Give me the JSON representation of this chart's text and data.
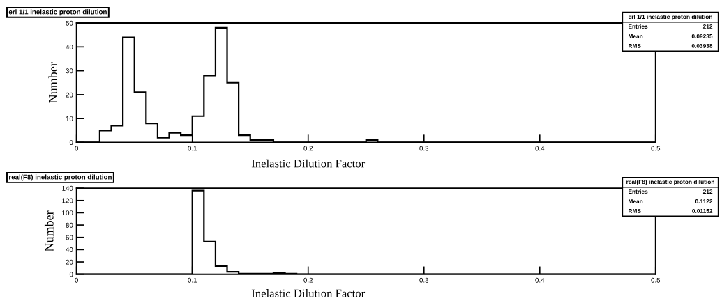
{
  "chart_data": [
    {
      "type": "histogram",
      "title": "erl 1/1 inelastic proton dilution",
      "xlabel": "Inelastic Dilution Factor",
      "ylabel": "Number",
      "bins": [
        0,
        0.01,
        0.02,
        0.03,
        0.04,
        0.05,
        0.06,
        0.07,
        0.08,
        0.09,
        0.1,
        0.11,
        0.12,
        0.13,
        0.14,
        0.15,
        0.16,
        0.17,
        0.18,
        0.19,
        0.2,
        0.21,
        0.22,
        0.23,
        0.24,
        0.25,
        0.26,
        0.27,
        0.28,
        0.29,
        0.3,
        0.31,
        0.32,
        0.33,
        0.34,
        0.35,
        0.36,
        0.37,
        0.38,
        0.39,
        0.4,
        0.41,
        0.42,
        0.43,
        0.44,
        0.45,
        0.46,
        0.47,
        0.48,
        0.49,
        0.5
      ],
      "values": [
        0,
        0,
        5,
        7,
        44,
        21,
        8,
        2,
        4,
        3,
        11,
        28,
        48,
        25,
        3,
        1,
        1,
        0,
        0,
        0,
        0,
        0,
        0,
        0,
        0,
        1,
        0,
        0,
        0,
        0,
        0,
        0,
        0,
        0,
        0,
        0,
        0,
        0,
        0,
        0,
        0,
        0,
        0,
        0,
        0,
        0,
        0,
        0,
        0,
        0
      ],
      "color": "#000000",
      "xlim": [
        0,
        0.5
      ],
      "ylim": [
        0,
        50
      ],
      "xticks": [
        0,
        0.1,
        0.2,
        0.3,
        0.4,
        0.5
      ],
      "yticks": [
        0,
        10,
        20,
        30,
        40,
        50
      ],
      "annotations": [
        "erl 1/1 inelastic proton dilution",
        "Entries",
        "212",
        "Mean",
        "0.09235",
        "RMS",
        "0.03938"
      ],
      "grid": false,
      "legend": false
    },
    {
      "type": "histogram",
      "title": "real(F8) inelastic proton dilution",
      "xlabel": "Inelastic Dilution Factor",
      "ylabel": "Number",
      "bins": [
        0,
        0.01,
        0.02,
        0.03,
        0.04,
        0.05,
        0.06,
        0.07,
        0.08,
        0.09,
        0.1,
        0.11,
        0.12,
        0.13,
        0.14,
        0.15,
        0.16,
        0.17,
        0.18,
        0.19,
        0.2,
        0.21,
        0.22,
        0.23,
        0.24,
        0.25,
        0.26,
        0.27,
        0.28,
        0.29,
        0.3,
        0.31,
        0.32,
        0.33,
        0.34,
        0.35,
        0.36,
        0.37,
        0.38,
        0.39,
        0.4,
        0.41,
        0.42,
        0.43,
        0.44,
        0.45,
        0.46,
        0.47,
        0.48,
        0.49,
        0.5
      ],
      "values": [
        0,
        0,
        0,
        0,
        0,
        0,
        0,
        0,
        0,
        0,
        136,
        53,
        13,
        4,
        1,
        1,
        1,
        2,
        1,
        0,
        0,
        0,
        0,
        0,
        0,
        0,
        0,
        0,
        0,
        0,
        0,
        0,
        0,
        0,
        0,
        0,
        0,
        0,
        0,
        0,
        0,
        0,
        0,
        0,
        0,
        0,
        0,
        0,
        0,
        0
      ],
      "color": "#000000",
      "xlim": [
        0,
        0.5
      ],
      "ylim": [
        0,
        140
      ],
      "xticks": [
        0,
        0.1,
        0.2,
        0.3,
        0.4,
        0.5
      ],
      "yticks": [
        0,
        20,
        40,
        60,
        80,
        100,
        120,
        140
      ],
      "annotations": [
        "real(F8) inelastic proton dilution",
        "Entries",
        "212",
        "Mean",
        "0.1122",
        "RMS",
        "0.01152"
      ],
      "grid": false,
      "legend": false
    }
  ]
}
